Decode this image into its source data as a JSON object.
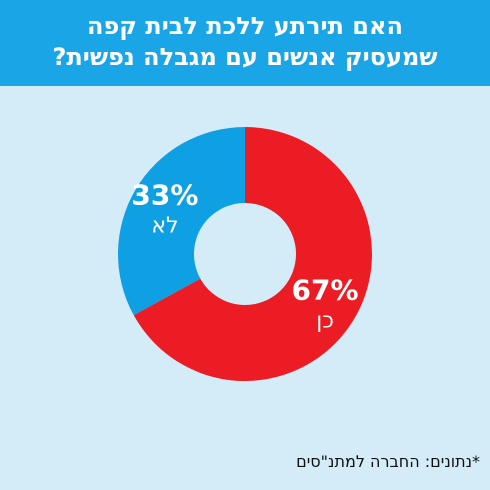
{
  "header": {
    "line1": "האם תירתע ללכת לבית קפה",
    "line2": "שמעסיק אנשים עם מגבלה נפשית?"
  },
  "colors": {
    "header_bg": "#1aa6e6",
    "background": "#d4ecf8",
    "yes": "#ec1c24",
    "no": "#0fa0e4"
  },
  "chart_data": {
    "type": "pie",
    "donut": true,
    "slices": [
      {
        "label": "כן",
        "value": 67,
        "value_label": "67%",
        "color": "#ec1c24"
      },
      {
        "label": "לא",
        "value": 33,
        "value_label": "33%",
        "color": "#0fa0e4"
      }
    ],
    "title": "האם תירתע ללכת לבית קפה שמעסיק אנשים עם מגבלה נפשית?"
  },
  "source": "*נתונים: החברה למתנ\"סים"
}
